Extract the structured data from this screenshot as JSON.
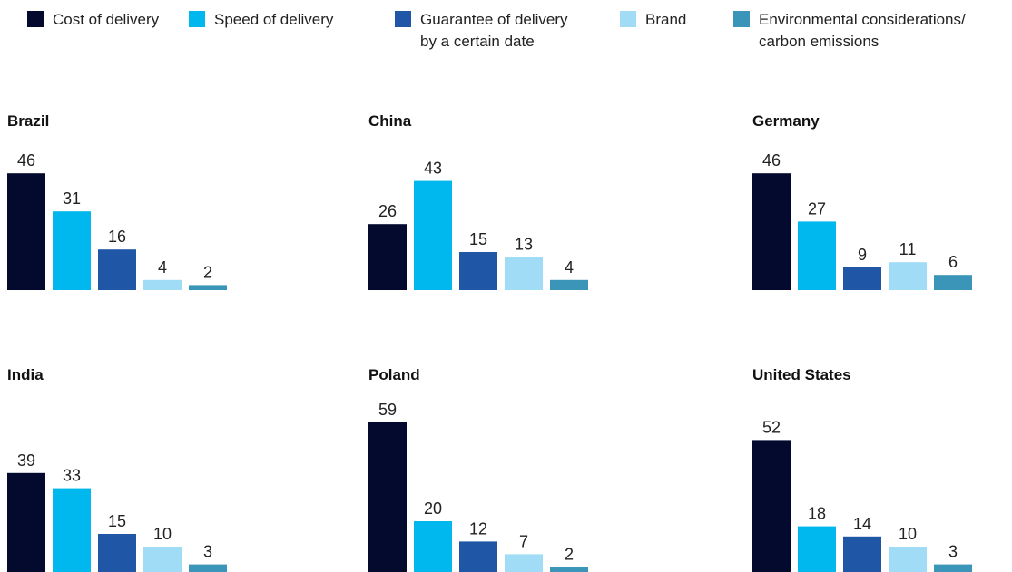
{
  "legend": {
    "labels": [
      "Cost of delivery",
      "Speed of delivery",
      "Guarantee of delivery by a certain date",
      "Brand",
      "Environmental considerations/ carbon emissions"
    ],
    "colors": [
      "#030a2e",
      "#00b8ee",
      "#1f56a6",
      "#a0dcf5",
      "#3a95b8"
    ]
  },
  "chart_data": [
    {
      "type": "bar",
      "title": "Brazil",
      "values": [
        46,
        31,
        16,
        4,
        2
      ]
    },
    {
      "type": "bar",
      "title": "China",
      "values": [
        26,
        43,
        15,
        13,
        4
      ]
    },
    {
      "type": "bar",
      "title": "Germany",
      "values": [
        46,
        27,
        9,
        11,
        6
      ]
    },
    {
      "type": "bar",
      "title": "India",
      "values": [
        39,
        33,
        15,
        10,
        3
      ]
    },
    {
      "type": "bar",
      "title": "Poland",
      "values": [
        59,
        20,
        12,
        7,
        2
      ]
    },
    {
      "type": "bar",
      "title": "United States",
      "values": [
        52,
        18,
        14,
        10,
        3
      ]
    }
  ]
}
